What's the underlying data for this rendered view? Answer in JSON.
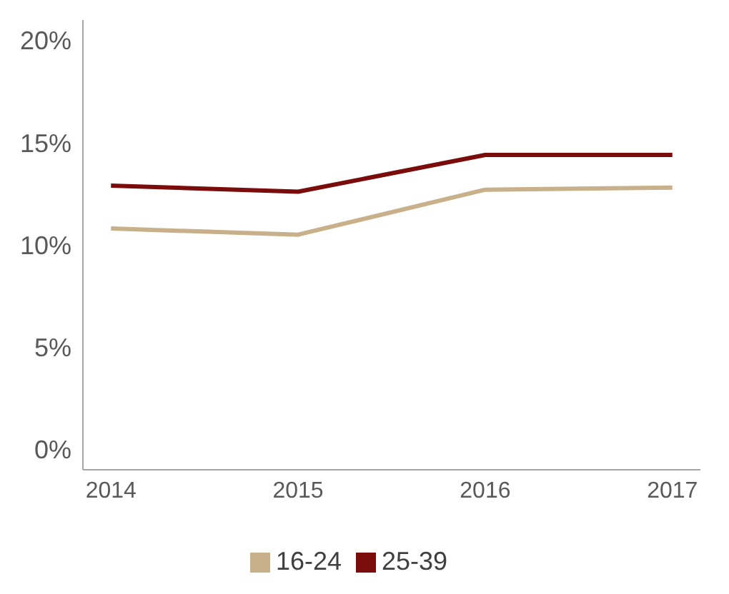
{
  "chart_data": {
    "type": "line",
    "x": [
      2014,
      2015,
      2016,
      2017
    ],
    "xlim": [
      2013.85,
      2017.15
    ],
    "xticks": [
      2014,
      2015,
      2016,
      2017
    ],
    "ylim": [
      -1,
      21
    ],
    "yticks": [
      {
        "value": 0,
        "label": "0%"
      },
      {
        "value": 5,
        "label": "5%"
      },
      {
        "value": 10,
        "label": "10%"
      },
      {
        "value": 15,
        "label": "15%"
      },
      {
        "value": 20,
        "label": "20%"
      }
    ],
    "grid": false,
    "legend": "bottom",
    "marker": "none",
    "line_style": "solid",
    "series": [
      {
        "name": "16-24",
        "color": "#c8b08a",
        "values": [
          10.8,
          10.5,
          12.7,
          12.8
        ]
      },
      {
        "name": "25-39",
        "color": "#7b0c0c",
        "values": [
          12.9,
          12.6,
          14.4,
          14.4
        ]
      }
    ]
  }
}
